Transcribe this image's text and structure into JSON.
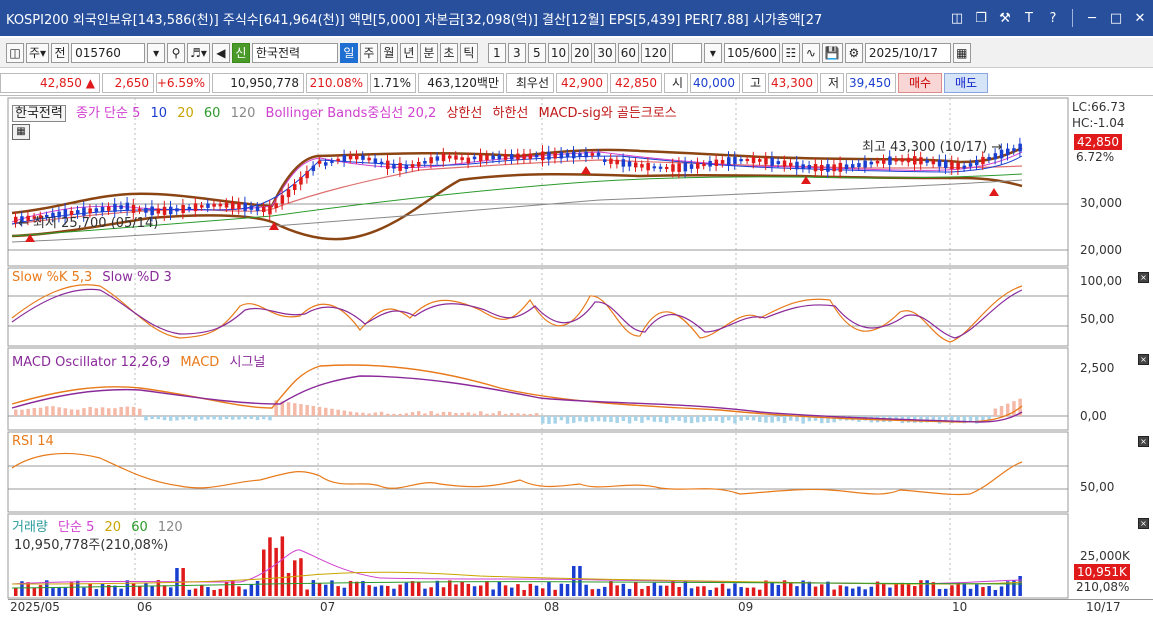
{
  "window": {
    "title": "KOSPI200 외국인보유[143,586(천)] 주식수[641,964(천)] 액면[5,000] 자본금[32,098(억)] 결산[12월] EPS[5,439] PER[7.88] 시가총액[27",
    "icons": [
      "tile-icon",
      "restore-icon",
      "tool-icon",
      "text-icon",
      "help-icon",
      "minimize-icon",
      "maximize-icon",
      "close-icon"
    ]
  },
  "toolbar": {
    "type_label": "주",
    "prefix_label": "전",
    "code_value": "015760",
    "shin_label": "신",
    "stock_name": "한국전력",
    "periods": [
      "일",
      "주",
      "월",
      "년",
      "분",
      "초",
      "틱"
    ],
    "intervals": [
      "1",
      "3",
      "5",
      "10",
      "20",
      "30",
      "60",
      "120"
    ],
    "count_value": "105",
    "count_total": "/600",
    "date_value": "2025/10/17"
  },
  "quote": {
    "price": "42,850",
    "change": "2,650",
    "change_pct": "+6.59%",
    "volume": "10,950,778",
    "volume_pct": "210.08%",
    "turnover": "1.71%",
    "amount": "463,120백만",
    "best_label": "최우선",
    "ask": "42,900",
    "bid": "42,850",
    "open_label": "시",
    "open": "40,000",
    "high_label": "고",
    "high": "43,300",
    "low_label": "저",
    "low": "39,450",
    "buy_label": "매수",
    "sell_label": "매도"
  },
  "price_panel": {
    "legend": {
      "stock_tag": "한국전력",
      "ma_label": "종가 단순 5",
      "ma10": "10",
      "ma20": "20",
      "ma60": "60",
      "ma120": "120",
      "bollinger": "Bollinger Bands중심선 20,2",
      "upper": "상한선",
      "lower": "하한선",
      "macd_sig": "MACD-sig와 골든크로스"
    },
    "lc": "LC:66.73",
    "hc": "HC:-1.04",
    "current_badge": "42,850",
    "pct_label": "6.72%",
    "y_ticks": [
      "30,000",
      "20,000"
    ],
    "high_note": "최고 43,300 (10/17)",
    "low_note": "최저 25,700 (05/14)"
  },
  "stoch_panel": {
    "legend_k": "Slow %K 5,3",
    "legend_d": "Slow %D 3",
    "y_ticks": [
      "100,00",
      "50,00"
    ]
  },
  "macd_panel": {
    "legend_osc": "MACD Oscillator 12,26,9",
    "legend_macd": "MACD",
    "legend_signal": "시그널",
    "y_ticks": [
      "2,500",
      "0,00"
    ]
  },
  "rsi_panel": {
    "legend": "RSI 14",
    "y_ticks": [
      "50,00"
    ]
  },
  "volume_panel": {
    "legend_vol": "거래량",
    "legend_ma": "단순 5",
    "ma20": "20",
    "ma60": "60",
    "ma120": "120",
    "info": "10,950,778주(210,08%)",
    "y_tick": "25,000K",
    "badge": "10,951K",
    "badge_pct": "210,08%"
  },
  "x_axis": {
    "labels": [
      "2025/05",
      "06",
      "07",
      "08",
      "09",
      "10"
    ],
    "right_label": "10/17"
  },
  "colors": {
    "up": "#e01a1a",
    "down": "#1a3fd0",
    "band": "#8b4513",
    "title_bar": "#274f9c"
  }
}
